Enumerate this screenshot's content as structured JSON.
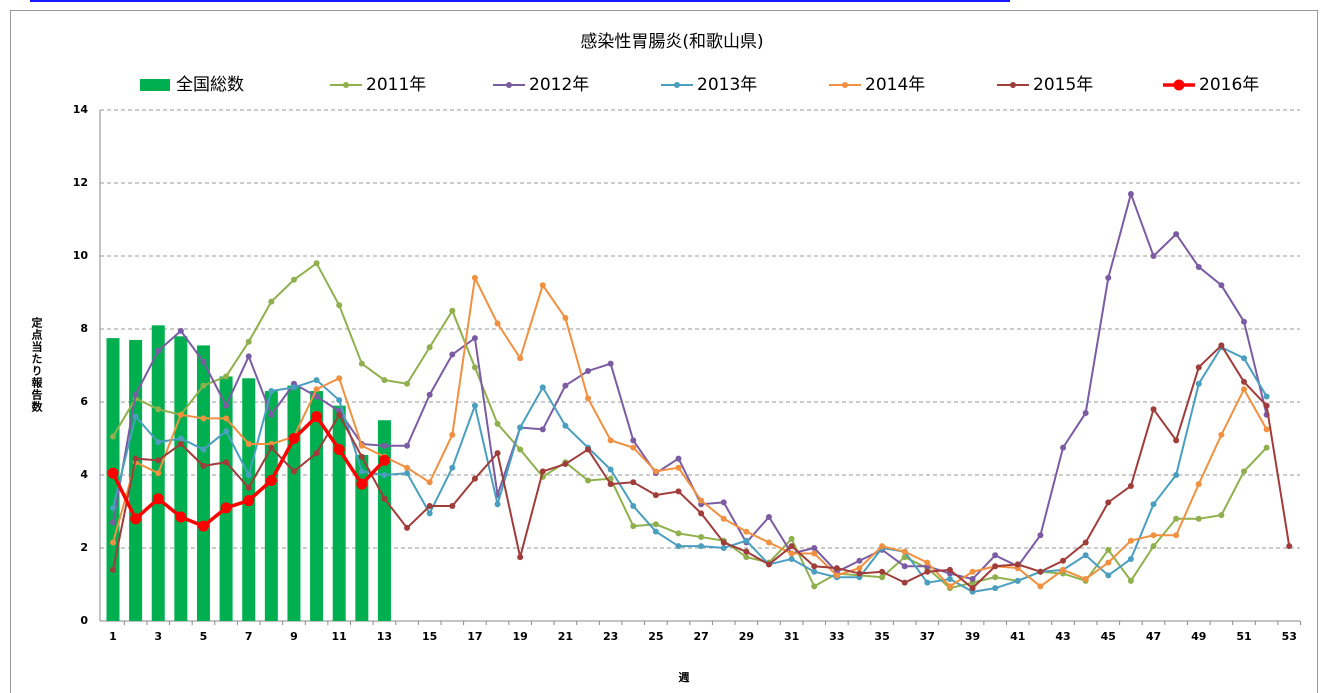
{
  "chart_data": {
    "type": "bar-line",
    "title": "感染性胃腸炎(和歌山県)",
    "y_label": "定点当たり報告数",
    "x_label": "週",
    "categories": [
      1,
      null,
      3,
      null,
      5,
      null,
      7,
      null,
      9,
      null,
      11,
      null,
      13,
      null,
      15,
      null,
      17,
      null,
      19,
      null,
      21,
      null,
      23,
      null,
      25,
      null,
      27,
      null,
      29,
      null,
      31,
      null,
      33,
      null,
      35,
      null,
      37,
      null,
      39,
      null,
      41,
      null,
      43,
      null,
      45,
      null,
      47,
      null,
      49,
      null,
      51,
      null,
      53
    ],
    "ylim": [
      0,
      14
    ],
    "yticks": [
      0,
      2,
      4,
      6,
      8,
      10,
      12,
      14
    ],
    "grid": true,
    "series": [
      {
        "name": "全国総数",
        "kind": "bar",
        "color": "#00b050",
        "values": [
          7.75,
          7.7,
          8.1,
          7.8,
          7.55,
          6.7,
          6.65,
          6.3,
          6.45,
          6.3,
          5.9,
          4.55,
          5.5,
          null,
          null,
          null,
          null,
          null,
          null,
          null,
          null,
          null,
          null,
          null,
          null,
          null,
          null,
          null,
          null,
          null,
          null,
          null,
          null,
          null,
          null,
          null,
          null,
          null,
          null,
          null,
          null,
          null,
          null,
          null,
          null,
          null,
          null,
          null,
          null,
          null,
          null,
          null,
          null
        ]
      },
      {
        "name": "2011年",
        "kind": "line",
        "color": "#8fb04c",
        "values": [
          5.05,
          6.1,
          5.8,
          5.65,
          6.45,
          6.7,
          7.65,
          8.75,
          9.35,
          9.8,
          8.65,
          7.05,
          6.6,
          6.5,
          7.5,
          8.5,
          6.95,
          5.4,
          4.7,
          3.95,
          4.35,
          3.85,
          3.9,
          2.6,
          2.65,
          2.4,
          2.3,
          2.2,
          1.75,
          1.6,
          2.25,
          0.95,
          1.3,
          1.25,
          1.2,
          1.75,
          1.45,
          0.9,
          1.05,
          1.2,
          1.1,
          1.35,
          1.3,
          1.1,
          1.95,
          1.1,
          2.05,
          2.8,
          2.8,
          2.9,
          4.1,
          4.75,
          null
        ]
      },
      {
        "name": "2012年",
        "kind": "line",
        "color": "#7b5ca3",
        "values": [
          2.7,
          6.2,
          7.4,
          7.95,
          7.1,
          5.9,
          7.25,
          5.65,
          6.5,
          6.15,
          5.75,
          4.85,
          4.8,
          4.8,
          6.2,
          7.3,
          7.75,
          3.45,
          5.3,
          5.25,
          6.45,
          6.85,
          7.05,
          4.95,
          4.05,
          4.45,
          3.2,
          3.25,
          2.15,
          2.85,
          1.85,
          2.0,
          1.35,
          1.65,
          1.95,
          1.5,
          1.5,
          1.3,
          1.15,
          1.8,
          1.5,
          2.35,
          4.75,
          5.7,
          9.4,
          11.7,
          10.0,
          10.6,
          9.7,
          9.2,
          8.2,
          5.65,
          null
        ]
      },
      {
        "name": "2013年",
        "kind": "line",
        "color": "#4a9fbf",
        "values": [
          3.1,
          5.6,
          4.9,
          5.0,
          4.7,
          5.2,
          4.0,
          6.3,
          6.4,
          6.6,
          6.05,
          4.1,
          4.0,
          4.05,
          2.95,
          4.2,
          5.9,
          3.2,
          5.3,
          6.4,
          5.35,
          4.75,
          4.15,
          3.15,
          2.45,
          2.05,
          2.05,
          2.0,
          2.2,
          1.55,
          1.7,
          1.35,
          1.2,
          1.2,
          2.0,
          1.9,
          1.05,
          1.15,
          0.8,
          0.9,
          1.1,
          1.35,
          1.4,
          1.8,
          1.25,
          1.7,
          3.2,
          4.0,
          6.5,
          7.5,
          7.2,
          6.15,
          null
        ]
      },
      {
        "name": "2014年",
        "kind": "line",
        "color": "#f09040",
        "values": [
          2.15,
          4.35,
          4.05,
          5.65,
          5.55,
          5.55,
          4.85,
          4.85,
          5.05,
          6.35,
          6.65,
          4.8,
          4.5,
          4.2,
          3.8,
          5.1,
          9.4,
          8.15,
          7.2,
          9.2,
          8.3,
          6.1,
          4.95,
          4.75,
          4.1,
          4.2,
          3.3,
          2.8,
          2.45,
          2.15,
          1.85,
          1.85,
          1.25,
          1.45,
          2.05,
          1.9,
          1.6,
          0.95,
          1.35,
          1.5,
          1.45,
          0.95,
          1.4,
          1.15,
          1.6,
          2.2,
          2.35,
          2.35,
          3.75,
          5.1,
          6.35,
          5.25,
          null
        ]
      },
      {
        "name": "2015年",
        "kind": "line",
        "color": "#a03c3a",
        "values": [
          1.4,
          4.45,
          4.4,
          4.85,
          4.25,
          4.35,
          3.65,
          4.75,
          4.1,
          4.6,
          5.65,
          4.5,
          3.35,
          2.55,
          3.15,
          3.15,
          3.9,
          4.6,
          1.75,
          4.1,
          4.3,
          4.7,
          3.75,
          3.8,
          3.45,
          3.55,
          2.95,
          2.15,
          1.9,
          1.55,
          2.05,
          1.5,
          1.45,
          1.3,
          1.35,
          1.05,
          1.35,
          1.4,
          0.9,
          1.5,
          1.55,
          1.35,
          1.65,
          2.15,
          3.25,
          3.7,
          5.8,
          4.95,
          6.95,
          7.55,
          6.55,
          5.9,
          2.05
        ]
      },
      {
        "name": "2016年",
        "kind": "line",
        "color": "#ff0000",
        "bold": true,
        "values": [
          4.05,
          2.8,
          3.35,
          2.85,
          2.6,
          3.1,
          3.3,
          3.85,
          5.0,
          5.6,
          4.7,
          3.75,
          4.4,
          null,
          null,
          null,
          null,
          null,
          null,
          null,
          null,
          null,
          null,
          null,
          null,
          null,
          null,
          null,
          null,
          null,
          null,
          null,
          null,
          null,
          null,
          null,
          null,
          null,
          null,
          null,
          null,
          null,
          null,
          null,
          null,
          null,
          null,
          null,
          null,
          null,
          null,
          null,
          null
        ]
      }
    ]
  }
}
